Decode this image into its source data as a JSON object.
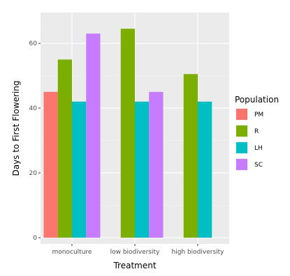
{
  "chart_data": {
    "type": "bar",
    "title": "",
    "xlabel": "Treatment",
    "ylabel": "Days to First Flowering",
    "categories": [
      "monoculture",
      "low biodiversity",
      "high biodiversity"
    ],
    "series": [
      {
        "name": "PM",
        "color": "#F8766D",
        "values": [
          45,
          null,
          null
        ]
      },
      {
        "name": "R",
        "color": "#7CAE00",
        "values": [
          55,
          64.5,
          50.5
        ]
      },
      {
        "name": "LH",
        "color": "#00BFC4",
        "values": [
          42,
          42,
          42
        ]
      },
      {
        "name": "SC",
        "color": "#C77CFF",
        "values": [
          63,
          45,
          null
        ]
      }
    ],
    "ylim": [
      0,
      67
    ],
    "yticks": [
      0,
      20,
      40,
      60
    ],
    "grid": true,
    "legend_title": "Population",
    "legend_position": "right"
  }
}
